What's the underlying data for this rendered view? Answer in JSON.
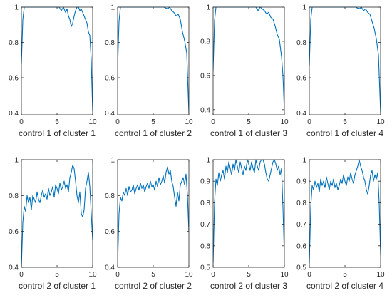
{
  "chart_data": [
    {
      "type": "line",
      "xlabel": "control 1 of cluster 1",
      "xlim": [
        0,
        10
      ],
      "ylim": [
        0.39,
        1.0
      ],
      "xticks": [
        0,
        5,
        10
      ],
      "yticks": [
        0.4,
        0.6,
        0.8,
        1
      ],
      "color": "#0072BD",
      "series": [
        {
          "x": [
            0,
            0.2,
            0.4,
            0.7,
            1,
            1.5,
            2,
            2.5,
            3,
            3.5,
            4,
            4.5,
            5,
            5.3,
            5.6,
            5.9,
            6.2,
            6.4,
            6.6,
            6.8,
            7,
            7.2,
            7.4,
            7.6,
            7.8,
            8,
            8.2,
            8.4,
            8.6,
            8.8,
            9,
            9.2,
            9.4,
            9.6,
            9.8,
            10
          ],
          "y": [
            0.68,
            0.93,
            1,
            1,
            1,
            1,
            1,
            1,
            1,
            1,
            1,
            1,
            1,
            1,
            0.98,
            1,
            0.97,
            0.99,
            0.95,
            0.93,
            0.89,
            0.91,
            0.95,
            0.98,
            1,
            1,
            0.98,
            0.99,
            0.97,
            0.95,
            0.93,
            0.91,
            0.86,
            0.84,
            0.7,
            0.41
          ]
        }
      ]
    },
    {
      "type": "line",
      "xlabel": "control 1 of cluster 2",
      "xlim": [
        0,
        10
      ],
      "ylim": [
        0.39,
        1.0
      ],
      "xticks": [
        0,
        5,
        10
      ],
      "yticks": [
        0.4,
        0.6,
        0.8,
        1
      ],
      "color": "#0072BD",
      "series": [
        {
          "x": [
            0,
            0.2,
            0.4,
            0.7,
            1,
            1.5,
            2,
            2.5,
            3,
            3.5,
            4,
            4.5,
            5,
            5.5,
            6,
            6.5,
            7,
            7.3,
            7.6,
            7.9,
            8.2,
            8.5,
            8.8,
            9.1,
            9.4,
            9.7,
            10
          ],
          "y": [
            0.66,
            0.92,
            1,
            1,
            1,
            1,
            1,
            1,
            1,
            1,
            1,
            1,
            1,
            1,
            1,
            1,
            0.99,
            1,
            0.98,
            0.97,
            0.95,
            0.96,
            0.93,
            0.86,
            0.81,
            0.74,
            0.4
          ]
        }
      ]
    },
    {
      "type": "line",
      "xlabel": "control 1 of cluster 3",
      "xlim": [
        0,
        10
      ],
      "ylim": [
        0.37,
        1.0
      ],
      "xticks": [
        0,
        5,
        10
      ],
      "yticks": [
        0.4,
        0.6,
        0.8,
        1
      ],
      "color": "#0072BD",
      "series": [
        {
          "x": [
            0,
            0.2,
            0.4,
            0.7,
            1,
            1.5,
            2,
            2.5,
            3,
            3.5,
            4,
            4.5,
            5,
            5.5,
            6,
            6.3,
            6.6,
            6.9,
            7.2,
            7.5,
            7.8,
            8.1,
            8.4,
            8.7,
            9,
            9.3,
            9.6,
            9.8,
            10
          ],
          "y": [
            0.63,
            0.92,
            1,
            1,
            1,
            1,
            1,
            1,
            1,
            1,
            1,
            1,
            1,
            1,
            1,
            0.98,
            1,
            0.99,
            0.98,
            0.96,
            0.97,
            0.94,
            0.93,
            0.89,
            0.84,
            0.81,
            0.71,
            0.6,
            0.39
          ]
        }
      ]
    },
    {
      "type": "line",
      "xlabel": "control 1 of cluster 4",
      "xlim": [
        0,
        10
      ],
      "ylim": [
        0.39,
        1.0
      ],
      "xticks": [
        0,
        5,
        10
      ],
      "yticks": [
        0.4,
        0.6,
        0.8,
        1
      ],
      "color": "#0072BD",
      "series": [
        {
          "x": [
            0,
            0.2,
            0.4,
            0.7,
            1,
            1.5,
            2,
            2.5,
            3,
            3.5,
            4,
            4.5,
            5,
            5.5,
            6,
            6.5,
            7,
            7.3,
            7.6,
            7.9,
            8.2,
            8.5,
            8.8,
            9.1,
            9.4,
            9.7,
            10
          ],
          "y": [
            0.67,
            0.93,
            1,
            1,
            1,
            1,
            1,
            1,
            1,
            1,
            1,
            1,
            1,
            1,
            1,
            1,
            0.99,
            1,
            0.98,
            0.99,
            0.97,
            0.96,
            0.92,
            0.88,
            0.82,
            0.73,
            0.4
          ]
        }
      ]
    },
    {
      "type": "line",
      "xlabel": "control 2 of cluster 1",
      "xlim": [
        0,
        10
      ],
      "ylim": [
        0.4,
        1.0
      ],
      "xticks": [
        0,
        5,
        10
      ],
      "yticks": [
        0.4,
        0.6,
        0.8,
        1
      ],
      "color": "#0072BD",
      "series": [
        {
          "x": [
            0,
            0.2,
            0.4,
            0.6,
            0.8,
            1,
            1.2,
            1.4,
            1.6,
            1.8,
            2,
            2.2,
            2.4,
            2.6,
            2.8,
            3,
            3.2,
            3.4,
            3.6,
            3.8,
            4,
            4.2,
            4.4,
            4.6,
            4.8,
            5,
            5.2,
            5.4,
            5.6,
            5.8,
            6,
            6.2,
            6.4,
            6.6,
            6.8,
            7,
            7.2,
            7.4,
            7.6,
            7.8,
            8,
            8.2,
            8.4,
            8.6,
            8.8,
            9,
            9.2,
            9.4,
            9.6,
            9.8,
            10
          ],
          "y": [
            0.4,
            0.65,
            0.74,
            0.71,
            0.8,
            0.76,
            0.79,
            0.72,
            0.8,
            0.78,
            0.76,
            0.82,
            0.78,
            0.76,
            0.8,
            0.83,
            0.79,
            0.81,
            0.78,
            0.84,
            0.8,
            0.82,
            0.85,
            0.79,
            0.86,
            0.84,
            0.81,
            0.87,
            0.83,
            0.85,
            0.88,
            0.84,
            0.86,
            0.82,
            0.9,
            0.93,
            0.97,
            0.95,
            0.88,
            0.8,
            0.76,
            0.82,
            0.7,
            0.68,
            0.72,
            0.84,
            0.88,
            0.93,
            0.85,
            0.7,
            0.55
          ]
        }
      ]
    },
    {
      "type": "line",
      "xlabel": "control 2 of cluster 2",
      "xlim": [
        0,
        10
      ],
      "ylim": [
        0.4,
        1.0
      ],
      "xticks": [
        0,
        5,
        10
      ],
      "yticks": [
        0.4,
        0.6,
        0.8,
        1
      ],
      "color": "#0072BD",
      "series": [
        {
          "x": [
            0,
            0.2,
            0.4,
            0.6,
            0.8,
            1,
            1.2,
            1.4,
            1.6,
            1.8,
            2,
            2.2,
            2.4,
            2.6,
            2.8,
            3,
            3.2,
            3.4,
            3.6,
            3.8,
            4,
            4.2,
            4.4,
            4.6,
            4.8,
            5,
            5.2,
            5.4,
            5.6,
            5.8,
            6,
            6.2,
            6.4,
            6.6,
            6.8,
            7,
            7.2,
            7.4,
            7.6,
            7.8,
            8,
            8.2,
            8.4,
            8.6,
            8.8,
            9,
            9.2,
            9.4,
            9.6,
            9.8,
            10
          ],
          "y": [
            0.42,
            0.7,
            0.79,
            0.77,
            0.82,
            0.8,
            0.84,
            0.8,
            0.85,
            0.82,
            0.83,
            0.86,
            0.81,
            0.84,
            0.86,
            0.83,
            0.87,
            0.84,
            0.86,
            0.82,
            0.85,
            0.87,
            0.84,
            0.88,
            0.85,
            0.86,
            0.83,
            0.88,
            0.85,
            0.9,
            0.86,
            0.88,
            0.91,
            0.87,
            0.93,
            0.96,
            0.92,
            0.94,
            0.88,
            0.85,
            0.79,
            0.74,
            0.82,
            0.77,
            0.86,
            0.88,
            0.9,
            0.86,
            0.92,
            0.8,
            0.6
          ]
        }
      ]
    },
    {
      "type": "line",
      "xlabel": "control 2 of cluster 3",
      "xlim": [
        0,
        10
      ],
      "ylim": [
        0.5,
        1.0
      ],
      "xticks": [
        0,
        5,
        10
      ],
      "yticks": [
        0.5,
        0.6,
        0.7,
        0.8,
        0.9,
        1
      ],
      "color": "#0072BD",
      "series": [
        {
          "x": [
            0,
            0.2,
            0.4,
            0.6,
            0.8,
            1,
            1.2,
            1.4,
            1.6,
            1.8,
            2,
            2.2,
            2.4,
            2.6,
            2.8,
            3,
            3.2,
            3.4,
            3.6,
            3.8,
            4,
            4.2,
            4.4,
            4.6,
            4.8,
            5,
            5.2,
            5.4,
            5.6,
            5.8,
            6,
            6.2,
            6.4,
            6.6,
            6.8,
            7,
            7.2,
            7.4,
            7.6,
            7.8,
            8,
            8.2,
            8.4,
            8.6,
            8.8,
            9,
            9.2,
            9.4,
            9.6,
            9.8,
            10
          ],
          "y": [
            0.52,
            0.8,
            0.91,
            0.88,
            0.94,
            0.9,
            0.93,
            0.95,
            0.91,
            0.97,
            0.94,
            0.99,
            0.96,
            0.93,
            0.98,
            0.95,
            1,
            0.97,
            0.94,
            0.99,
            0.96,
            0.93,
            0.97,
            0.95,
            1,
            0.98,
            0.95,
            0.99,
            0.96,
            0.94,
            1,
            0.97,
            0.95,
            0.99,
            1,
            1,
            0.98,
            0.94,
            0.91,
            0.9,
            0.93,
            0.96,
            0.99,
            1,
            0.98,
            0.95,
            0.97,
            0.93,
            0.96,
            0.78,
            0.55
          ]
        }
      ]
    },
    {
      "type": "line",
      "xlabel": "control 2 of cluster 4",
      "xlim": [
        0,
        10
      ],
      "ylim": [
        0.5,
        1.0
      ],
      "xticks": [
        0,
        5,
        10
      ],
      "yticks": [
        0.5,
        0.6,
        0.7,
        0.8,
        0.9,
        1
      ],
      "color": "#0072BD",
      "series": [
        {
          "x": [
            0,
            0.2,
            0.4,
            0.6,
            0.8,
            1,
            1.2,
            1.4,
            1.6,
            1.8,
            2,
            2.2,
            2.4,
            2.6,
            2.8,
            3,
            3.2,
            3.4,
            3.6,
            3.8,
            4,
            4.2,
            4.4,
            4.6,
            4.8,
            5,
            5.2,
            5.4,
            5.6,
            5.8,
            6,
            6.2,
            6.4,
            6.6,
            6.8,
            7,
            7.2,
            7.4,
            7.6,
            7.8,
            8,
            8.2,
            8.4,
            8.6,
            8.8,
            9,
            9.2,
            9.4,
            9.6,
            9.8,
            10
          ],
          "y": [
            0.52,
            0.78,
            0.88,
            0.86,
            0.9,
            0.87,
            0.89,
            0.85,
            0.91,
            0.88,
            0.9,
            0.87,
            0.92,
            0.89,
            0.86,
            0.9,
            0.88,
            0.91,
            0.87,
            0.89,
            0.86,
            0.88,
            0.91,
            0.89,
            0.93,
            0.9,
            0.88,
            0.92,
            0.9,
            0.94,
            0.91,
            0.89,
            0.93,
            0.95,
            0.97,
            1,
            0.97,
            0.95,
            0.92,
            0.9,
            0.86,
            0.84,
            0.88,
            0.93,
            0.95,
            0.9,
            0.93,
            0.91,
            0.94,
            0.8,
            0.56
          ]
        }
      ]
    }
  ]
}
